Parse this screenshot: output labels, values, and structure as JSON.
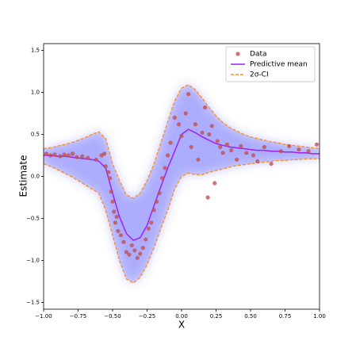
{
  "chart_data": {
    "type": "gp",
    "xlabel": "X",
    "ylabel": "Estimate",
    "xlim": [
      -1,
      1
    ],
    "ylim": [
      -1.58,
      1.58
    ],
    "xticks": [
      {
        "value": -1,
        "label": "−1.00"
      },
      {
        "value": -0.75,
        "label": "−0.75"
      },
      {
        "value": -0.5,
        "label": "−0.50"
      },
      {
        "value": -0.25,
        "label": "−0.25"
      },
      {
        "value": 0,
        "label": "0.00"
      },
      {
        "value": 0.25,
        "label": "0.25"
      },
      {
        "value": 0.5,
        "label": "0.50"
      },
      {
        "value": 0.75,
        "label": "0.75"
      },
      {
        "value": 1,
        "label": "1.00"
      }
    ],
    "yticks": [
      {
        "value": -1.5,
        "label": "−1.5"
      },
      {
        "value": -1,
        "label": "−1.0"
      },
      {
        "value": -0.5,
        "label": "−0.5"
      },
      {
        "value": 0,
        "label": "0.0"
      },
      {
        "value": 0.5,
        "label": "0.5"
      },
      {
        "value": 1,
        "label": "1.0"
      },
      {
        "value": 1.5,
        "label": "1.5"
      }
    ],
    "legend": "upper right",
    "x": [
      -1,
      -0.95,
      -0.9,
      -0.85,
      -0.8,
      -0.75,
      -0.7,
      -0.65,
      -0.6,
      -0.55,
      -0.5,
      -0.45,
      -0.4,
      -0.35,
      -0.3,
      -0.25,
      -0.2,
      -0.15,
      -0.1,
      -0.05,
      0,
      0.05,
      0.1,
      0.15,
      0.2,
      0.25,
      0.3,
      0.35,
      0.4,
      0.45,
      0.5,
      0.55,
      0.6,
      0.65,
      0.7,
      0.75,
      0.8,
      0.85,
      0.9,
      0.95,
      1
    ],
    "series": [
      {
        "name": "Data",
        "kind": "scatter",
        "color": "#c0504d",
        "x": [
          -0.98,
          -0.95,
          -0.92,
          -0.88,
          -0.85,
          -0.82,
          -0.79,
          -0.76,
          -0.72,
          -0.68,
          -0.62,
          -0.58,
          -0.56,
          -0.55,
          -0.53,
          -0.52,
          -0.51,
          -0.5,
          -0.49,
          -0.48,
          -0.47,
          -0.46,
          -0.44,
          -0.42,
          -0.4,
          -0.38,
          -0.36,
          -0.34,
          -0.32,
          -0.3,
          -0.28,
          -0.26,
          -0.24,
          -0.22,
          -0.2,
          -0.18,
          -0.16,
          -0.14,
          -0.12,
          -0.1,
          -0.08,
          -0.05,
          -0.02,
          0,
          0.03,
          0.05,
          0.07,
          0.1,
          0.12,
          0.15,
          0.17,
          0.19,
          0.2,
          0.22,
          0.24,
          0.26,
          0.28,
          0.3,
          0.33,
          0.36,
          0.4,
          0.43,
          0.47,
          0.52,
          0.55,
          0.6,
          0.65,
          0.72,
          0.78,
          0.85,
          0.92,
          0.98
        ],
        "values": [
          0.27,
          0.25,
          0.26,
          0.24,
          0.26,
          0.25,
          0.27,
          0.23,
          0.24,
          0.22,
          0.2,
          0.25,
          0.27,
          0.12,
          0.05,
          -0.02,
          -0.18,
          -0.3,
          -0.42,
          -0.55,
          -0.48,
          -0.65,
          -0.7,
          -0.78,
          -0.9,
          -0.93,
          -0.82,
          -0.88,
          -0.97,
          -0.92,
          -0.85,
          -0.75,
          -0.62,
          -0.55,
          -0.4,
          -0.3,
          -0.2,
          -0.02,
          0.1,
          0.25,
          0.4,
          0.7,
          0.62,
          0.48,
          0.75,
          0.98,
          0.35,
          0.62,
          0.2,
          0.52,
          0.82,
          -0.25,
          0.5,
          0.6,
          -0.08,
          0.42,
          0.35,
          0.28,
          0.38,
          0.31,
          0.2,
          0.36,
          0.28,
          0.25,
          0.18,
          0.35,
          0.15,
          0.3,
          0.36,
          0.32,
          0.3,
          0.38
        ]
      },
      {
        "name": "Predictive mean",
        "kind": "line",
        "color": "#a020f0",
        "values": [
          0.25,
          0.25,
          0.24,
          0.24,
          0.23,
          0.22,
          0.21,
          0.2,
          0.18,
          0.1,
          -0.2,
          -0.48,
          -0.68,
          -0.76,
          -0.73,
          -0.58,
          -0.35,
          -0.12,
          0.1,
          0.3,
          0.5,
          0.56,
          0.52,
          0.47,
          0.43,
          0.39,
          0.37,
          0.35,
          0.34,
          0.33,
          0.32,
          0.31,
          0.31,
          0.3,
          0.3,
          0.29,
          0.29,
          0.28,
          0.28,
          0.27,
          0.27
        ]
      },
      {
        "name": "2σ-CI",
        "kind": "band",
        "color": "#ff8c1a",
        "upper": [
          0.33,
          0.34,
          0.36,
          0.38,
          0.4,
          0.43,
          0.46,
          0.5,
          0.53,
          0.45,
          0.15,
          -0.05,
          -0.22,
          -0.26,
          -0.2,
          -0.05,
          0.15,
          0.4,
          0.65,
          0.9,
          1.05,
          1.09,
          1.03,
          0.93,
          0.82,
          0.72,
          0.64,
          0.58,
          0.54,
          0.5,
          0.47,
          0.45,
          0.43,
          0.41,
          0.4,
          0.38,
          0.37,
          0.36,
          0.35,
          0.34,
          0.33
        ],
        "lower": [
          0.15,
          0.12,
          0.08,
          0.04,
          0,
          -0.05,
          -0.1,
          -0.15,
          -0.2,
          -0.4,
          -0.7,
          -1,
          -1.22,
          -1.27,
          -1.2,
          -1.05,
          -0.85,
          -0.62,
          -0.4,
          -0.15,
          0,
          0.04,
          0.02,
          0.02,
          0.05,
          0.07,
          0.09,
          0.11,
          0.13,
          0.14,
          0.15,
          0.16,
          0.17,
          0.18,
          0.19,
          0.19,
          0.2,
          0.2,
          0.21,
          0.21,
          0.21
        ]
      }
    ]
  }
}
